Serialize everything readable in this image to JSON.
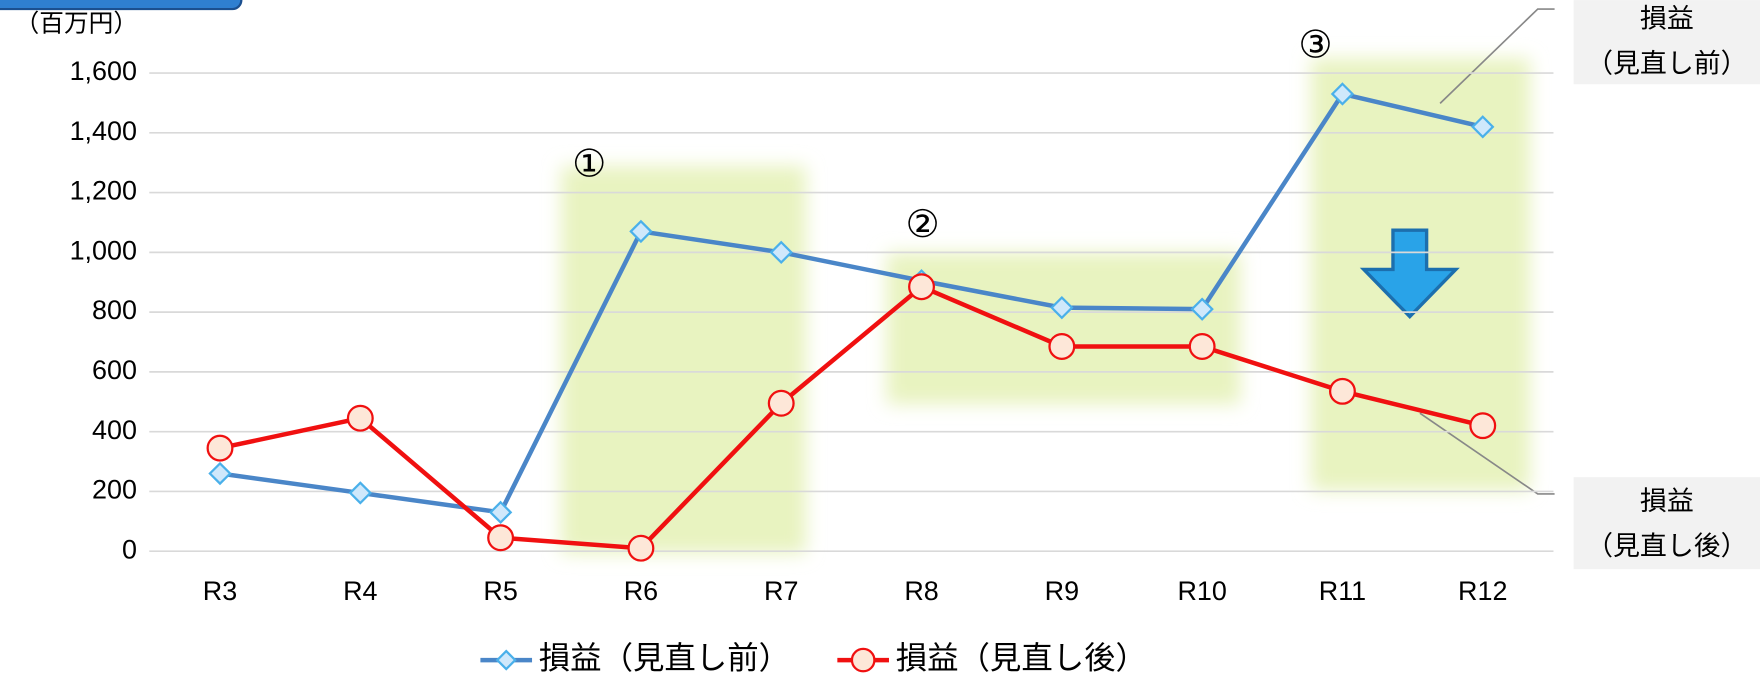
{
  "chart_data": {
    "type": "line",
    "y_unit_label": "（百万円）",
    "categories": [
      "R3",
      "R4",
      "R5",
      "R6",
      "R7",
      "R8",
      "R9",
      "R10",
      "R11",
      "R12"
    ],
    "series": [
      {
        "name": "損益（見直し前）",
        "color": "#4a86c8",
        "marker": "diamond",
        "values": [
          260,
          195,
          130,
          1070,
          1000,
          905,
          815,
          810,
          1530,
          1420
        ]
      },
      {
        "name": "損益（見直し後）",
        "color": "#f01010",
        "marker": "circle",
        "values": [
          345,
          445,
          45,
          10,
          495,
          885,
          685,
          685,
          535,
          420
        ]
      }
    ],
    "ylim": [
      0,
      1600
    ],
    "yticks": [
      0,
      200,
      400,
      600,
      800,
      {
        "value": 1000,
        "label": "1,000"
      },
      {
        "value": 1200,
        "label": "1,200"
      },
      {
        "value": 1400,
        "label": "1,400"
      },
      {
        "value": 1600,
        "label": "1,600"
      }
    ],
    "grid": true,
    "annotations": [
      "①",
      "②",
      "③"
    ],
    "callouts": [
      {
        "lines": [
          "損益",
          "（見直し前）"
        ]
      },
      {
        "lines": [
          "損益",
          "（見直し後）"
        ]
      }
    ]
  }
}
